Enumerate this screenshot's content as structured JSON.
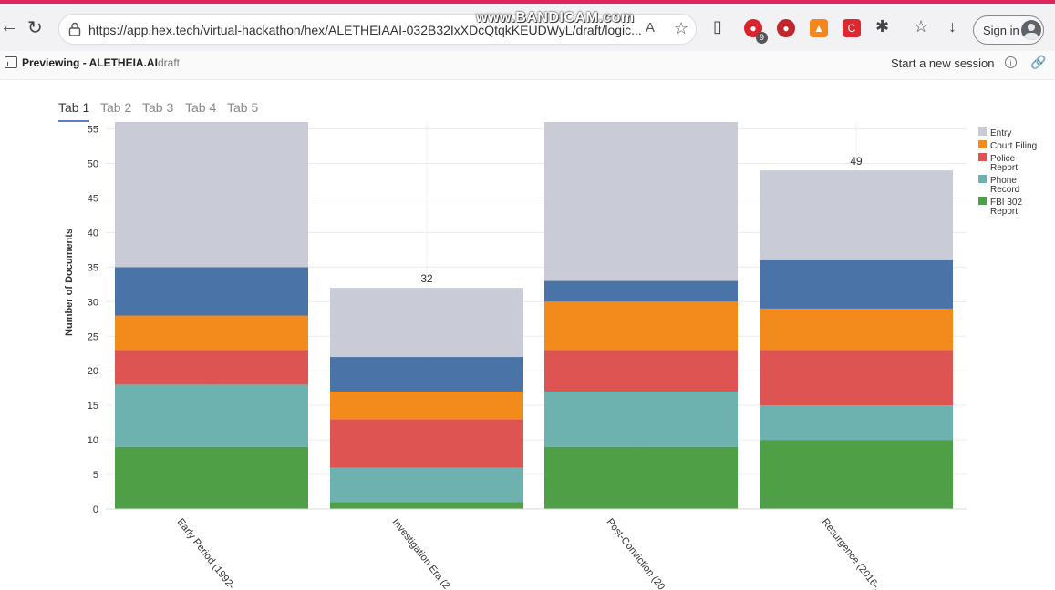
{
  "browser": {
    "url": "https://app.hex.tech/virtual-hackathon/hex/ALETHEIAAI-032B32IxXDcQtqkKEUDWyL/draft/logic...",
    "watermark": "www.BANDICAM.com",
    "extension_badge": "9",
    "signin_label": "Sign in"
  },
  "app": {
    "title": "Previewing - ALETHEIA.AI",
    "draft": "draft",
    "new_session": "Start a new session"
  },
  "tabs": [
    "Tab 1",
    "Tab 2",
    "Tab 3",
    "Tab 4",
    "Tab 5"
  ],
  "active_tab": 0,
  "chart_data": {
    "type": "bar",
    "stacked": true,
    "ylabel": "Number of Documents",
    "ylim": [
      0,
      56
    ],
    "yticks": [
      0,
      5,
      10,
      15,
      20,
      25,
      30,
      35,
      40,
      45,
      50,
      55
    ],
    "grid": true,
    "legend_position": "right",
    "categories": [
      "Early Period (1992-...",
      "Investigation Era (2...",
      "Post-Conviction (20...",
      "Resurgence (2016-..."
    ],
    "series": [
      {
        "name": "FBI 302 Report",
        "color": "#4e9f46",
        "values": [
          9,
          1,
          9,
          10
        ]
      },
      {
        "name": "Phone Record",
        "color": "#6db2af",
        "values": [
          9,
          5,
          8,
          5
        ]
      },
      {
        "name": "Police Report",
        "color": "#de5452",
        "values": [
          5,
          7,
          6,
          8
        ]
      },
      {
        "name": "Court Filing",
        "color": "#f28a1c",
        "values": [
          5,
          4,
          7,
          6
        ]
      },
      {
        "name": "",
        "color": "#4a74a8",
        "values": [
          7,
          5,
          3,
          7
        ]
      },
      {
        "name": "Entry",
        "color": "#c9ccd6",
        "values": [
          21,
          10,
          23,
          13
        ]
      }
    ],
    "totals": [
      56,
      32,
      56,
      49
    ],
    "total_labels": [
      "",
      "32",
      "",
      "49"
    ]
  }
}
